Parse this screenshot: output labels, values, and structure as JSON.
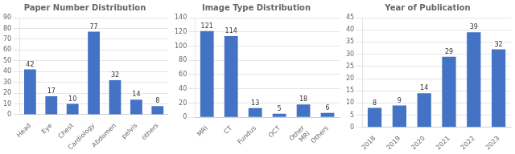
{
  "chart_data": [
    {
      "type": "bar",
      "title": "Paper Number Distribution",
      "categories": [
        "Head",
        "Eye",
        "Chest",
        "Cardiology",
        "Abdomen",
        "pelvis",
        "others"
      ],
      "values": [
        42,
        17,
        10,
        77,
        32,
        14,
        8
      ],
      "color": "#4472C4",
      "ylim": [
        0,
        90
      ],
      "yticks": [
        0,
        10,
        20,
        30,
        40,
        50,
        60,
        70,
        80,
        90
      ],
      "grid": true,
      "data_labels": true
    },
    {
      "type": "bar",
      "title": "Image Type Distribution",
      "categories": [
        "MRI",
        "CT",
        "Fundus",
        "OCT",
        "Other\nMRI",
        "Others"
      ],
      "values": [
        121,
        114,
        13,
        5,
        18,
        6
      ],
      "color": "#4472C4",
      "ylim": [
        0,
        140
      ],
      "yticks": [
        0,
        20,
        40,
        60,
        80,
        100,
        120,
        140
      ],
      "grid": true,
      "data_labels": true
    },
    {
      "type": "bar",
      "title": "Year of Publication",
      "categories": [
        "2018",
        "2019",
        "2020",
        "2021",
        "2022",
        "2023"
      ],
      "values": [
        8,
        9,
        14,
        29,
        39,
        32
      ],
      "color": "#4472C4",
      "ylim": [
        0,
        45
      ],
      "yticks": [
        0,
        5,
        10,
        15,
        20,
        25,
        30,
        35,
        40,
        45
      ],
      "grid": true,
      "data_labels": true
    }
  ]
}
